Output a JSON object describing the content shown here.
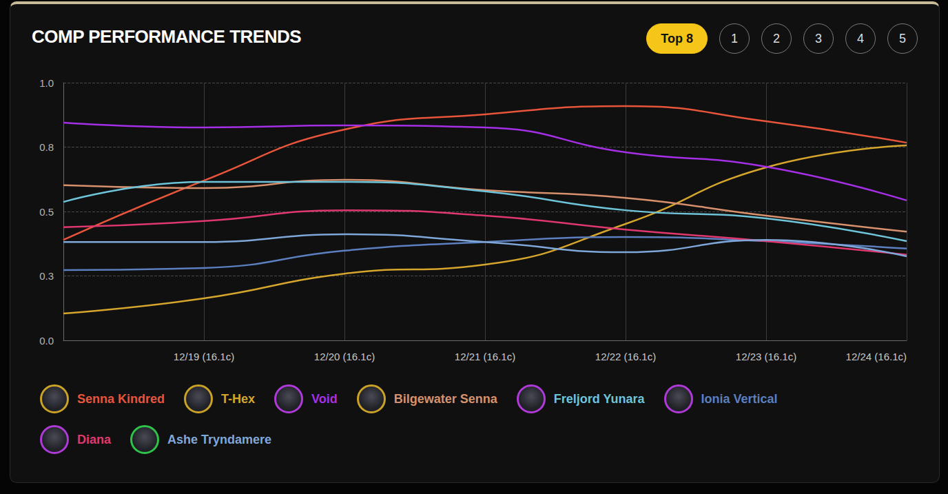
{
  "chart_data": {
    "type": "line",
    "title": "COMP PERFORMANCE TRENDS",
    "categories": [
      null,
      "12/19 (16.1c)",
      "12/20 (16.1c)",
      "12/21 (16.1c)",
      "12/22 (16.1c)",
      "12/23 (16.1c)",
      "12/24 (16.1c)"
    ],
    "series": [
      {
        "name": "Senna Kindred",
        "color": "#e8553b",
        "values": [
          0.39,
          0.62,
          0.818,
          0.877,
          0.909,
          0.85,
          0.767
        ]
      },
      {
        "name": "T-Hex",
        "color": "#d6a62c",
        "values": [
          0.104,
          0.163,
          0.259,
          0.294,
          0.452,
          0.671,
          0.757
        ]
      },
      {
        "name": "Void",
        "color": "#a52fe6",
        "values": [
          0.845,
          0.826,
          0.834,
          0.826,
          0.73,
          0.674,
          0.543
        ]
      },
      {
        "name": "Bilgewater Senna",
        "color": "#d8916c",
        "values": [
          0.602,
          0.591,
          0.623,
          0.583,
          0.553,
          0.484,
          0.422
        ]
      },
      {
        "name": "Freljord Yunara",
        "color": "#6ec4d9",
        "values": [
          0.537,
          0.615,
          0.615,
          0.578,
          0.505,
          0.473,
          0.385
        ]
      },
      {
        "name": "Ionia Vertical",
        "color": "#5b7fbf",
        "values": [
          0.273,
          0.281,
          0.348,
          0.382,
          0.401,
          0.385,
          0.356
        ]
      },
      {
        "name": "Diana",
        "color": "#e0386e",
        "values": [
          0.439,
          0.463,
          0.505,
          0.484,
          0.43,
          0.385,
          0.332
        ]
      },
      {
        "name": "Ashe Tryndamere",
        "color": "#7fa7d9",
        "values": [
          0.382,
          0.382,
          0.412,
          0.382,
          0.342,
          0.39,
          0.326
        ]
      }
    ],
    "ylim": [
      0,
      1
    ],
    "yticks": [
      {
        "value": 0,
        "label": "0.0"
      },
      {
        "value": 0.25,
        "label": "0.3"
      },
      {
        "value": 0.5,
        "label": "0.5"
      },
      {
        "value": 0.75,
        "label": "0.8"
      },
      {
        "value": 1,
        "label": "1.0"
      }
    ],
    "grid": true,
    "legend": "bottom"
  },
  "filter_buttons": {
    "labels": [
      "Top 8",
      "1",
      "2",
      "3",
      "4",
      "5"
    ],
    "active": "Top 8"
  }
}
